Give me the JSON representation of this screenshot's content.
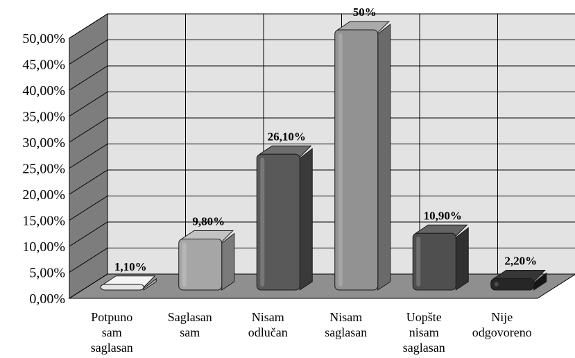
{
  "chart_data": {
    "type": "bar",
    "categories": [
      [
        "Potpuno",
        "sam",
        "saglasan"
      ],
      [
        "Saglasan",
        "sam"
      ],
      [
        "Nisam",
        "odlučan"
      ],
      [
        "Nisam",
        "saglasan"
      ],
      [
        "Uopšte",
        "nisam",
        "saglasan"
      ],
      [
        "Nije",
        "odgovoreno"
      ]
    ],
    "values": [
      1.1,
      9.8,
      26.1,
      50,
      10.9,
      2.2
    ],
    "data_labels": [
      "1,10%",
      "9,80%",
      "26,10%",
      "50%",
      "10,90%",
      "2,20%"
    ],
    "yticks": [
      "0,00%",
      "5,00%",
      "10,00%",
      "15,00%",
      "20,00%",
      "25,00%",
      "30,00%",
      "35,00%",
      "40,00%",
      "45,00%",
      "50,00%"
    ],
    "ylim": [
      0,
      50
    ],
    "grid": true,
    "bar_colors": [
      {
        "front": "#e6e6e6",
        "side": "#b4b4b4",
        "top": "#f4f4f4"
      },
      {
        "front": "#a6a6a6",
        "side": "#7a7a7a",
        "top": "#c2c2c2"
      },
      {
        "front": "#595959",
        "side": "#3a3a3a",
        "top": "#6e6e6e"
      },
      {
        "front": "#929292",
        "side": "#6a6a6a",
        "top": "#aaaaaa"
      },
      {
        "front": "#4f4f4f",
        "side": "#303030",
        "top": "#646464"
      },
      {
        "front": "#262626",
        "side": "#161616",
        "top": "#363636"
      }
    ],
    "colors": {
      "back_wall": "#e3e3e3",
      "side_wall": "#7d7d7d",
      "floor": "#8f8f8f",
      "gridline": "#000000"
    }
  }
}
